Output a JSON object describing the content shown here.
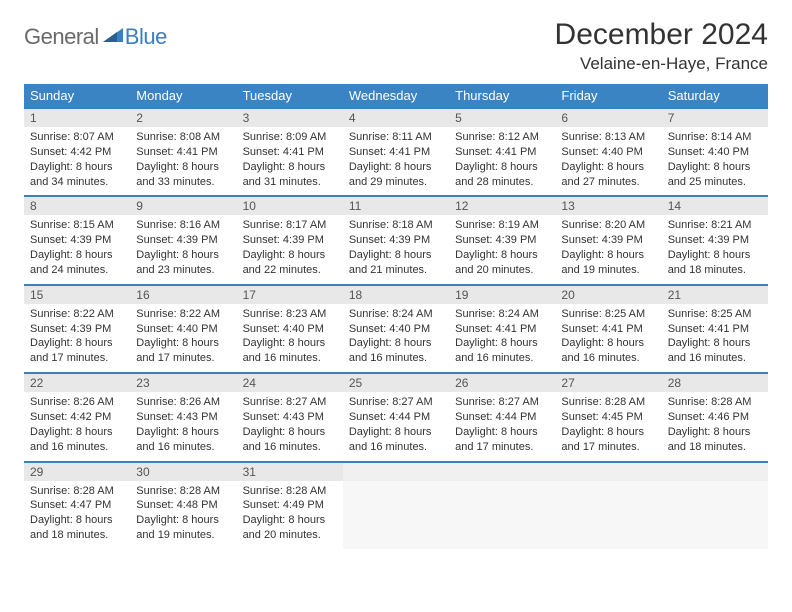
{
  "logo": {
    "general": "General",
    "blue": "Blue"
  },
  "title": "December 2024",
  "location": "Velaine-en-Haye, France",
  "colors": {
    "header_bg": "#3a84c4",
    "header_text": "#ffffff",
    "rule": "#3a7fbf",
    "daynum_bg": "#e8e8e8",
    "logo_gray": "#6a6a6a",
    "logo_blue": "#3a7fbf"
  },
  "weekdays": [
    "Sunday",
    "Monday",
    "Tuesday",
    "Wednesday",
    "Thursday",
    "Friday",
    "Saturday"
  ],
  "weeks": [
    [
      {
        "n": "1",
        "sunrise": "8:07 AM",
        "sunset": "4:42 PM",
        "daylight": "8 hours and 34 minutes."
      },
      {
        "n": "2",
        "sunrise": "8:08 AM",
        "sunset": "4:41 PM",
        "daylight": "8 hours and 33 minutes."
      },
      {
        "n": "3",
        "sunrise": "8:09 AM",
        "sunset": "4:41 PM",
        "daylight": "8 hours and 31 minutes."
      },
      {
        "n": "4",
        "sunrise": "8:11 AM",
        "sunset": "4:41 PM",
        "daylight": "8 hours and 29 minutes."
      },
      {
        "n": "5",
        "sunrise": "8:12 AM",
        "sunset": "4:41 PM",
        "daylight": "8 hours and 28 minutes."
      },
      {
        "n": "6",
        "sunrise": "8:13 AM",
        "sunset": "4:40 PM",
        "daylight": "8 hours and 27 minutes."
      },
      {
        "n": "7",
        "sunrise": "8:14 AM",
        "sunset": "4:40 PM",
        "daylight": "8 hours and 25 minutes."
      }
    ],
    [
      {
        "n": "8",
        "sunrise": "8:15 AM",
        "sunset": "4:39 PM",
        "daylight": "8 hours and 24 minutes."
      },
      {
        "n": "9",
        "sunrise": "8:16 AM",
        "sunset": "4:39 PM",
        "daylight": "8 hours and 23 minutes."
      },
      {
        "n": "10",
        "sunrise": "8:17 AM",
        "sunset": "4:39 PM",
        "daylight": "8 hours and 22 minutes."
      },
      {
        "n": "11",
        "sunrise": "8:18 AM",
        "sunset": "4:39 PM",
        "daylight": "8 hours and 21 minutes."
      },
      {
        "n": "12",
        "sunrise": "8:19 AM",
        "sunset": "4:39 PM",
        "daylight": "8 hours and 20 minutes."
      },
      {
        "n": "13",
        "sunrise": "8:20 AM",
        "sunset": "4:39 PM",
        "daylight": "8 hours and 19 minutes."
      },
      {
        "n": "14",
        "sunrise": "8:21 AM",
        "sunset": "4:39 PM",
        "daylight": "8 hours and 18 minutes."
      }
    ],
    [
      {
        "n": "15",
        "sunrise": "8:22 AM",
        "sunset": "4:39 PM",
        "daylight": "8 hours and 17 minutes."
      },
      {
        "n": "16",
        "sunrise": "8:22 AM",
        "sunset": "4:40 PM",
        "daylight": "8 hours and 17 minutes."
      },
      {
        "n": "17",
        "sunrise": "8:23 AM",
        "sunset": "4:40 PM",
        "daylight": "8 hours and 16 minutes."
      },
      {
        "n": "18",
        "sunrise": "8:24 AM",
        "sunset": "4:40 PM",
        "daylight": "8 hours and 16 minutes."
      },
      {
        "n": "19",
        "sunrise": "8:24 AM",
        "sunset": "4:41 PM",
        "daylight": "8 hours and 16 minutes."
      },
      {
        "n": "20",
        "sunrise": "8:25 AM",
        "sunset": "4:41 PM",
        "daylight": "8 hours and 16 minutes."
      },
      {
        "n": "21",
        "sunrise": "8:25 AM",
        "sunset": "4:41 PM",
        "daylight": "8 hours and 16 minutes."
      }
    ],
    [
      {
        "n": "22",
        "sunrise": "8:26 AM",
        "sunset": "4:42 PM",
        "daylight": "8 hours and 16 minutes."
      },
      {
        "n": "23",
        "sunrise": "8:26 AM",
        "sunset": "4:43 PM",
        "daylight": "8 hours and 16 minutes."
      },
      {
        "n": "24",
        "sunrise": "8:27 AM",
        "sunset": "4:43 PM",
        "daylight": "8 hours and 16 minutes."
      },
      {
        "n": "25",
        "sunrise": "8:27 AM",
        "sunset": "4:44 PM",
        "daylight": "8 hours and 16 minutes."
      },
      {
        "n": "26",
        "sunrise": "8:27 AM",
        "sunset": "4:44 PM",
        "daylight": "8 hours and 17 minutes."
      },
      {
        "n": "27",
        "sunrise": "8:28 AM",
        "sunset": "4:45 PM",
        "daylight": "8 hours and 17 minutes."
      },
      {
        "n": "28",
        "sunrise": "8:28 AM",
        "sunset": "4:46 PM",
        "daylight": "8 hours and 18 minutes."
      }
    ],
    [
      {
        "n": "29",
        "sunrise": "8:28 AM",
        "sunset": "4:47 PM",
        "daylight": "8 hours and 18 minutes."
      },
      {
        "n": "30",
        "sunrise": "8:28 AM",
        "sunset": "4:48 PM",
        "daylight": "8 hours and 19 minutes."
      },
      {
        "n": "31",
        "sunrise": "8:28 AM",
        "sunset": "4:49 PM",
        "daylight": "8 hours and 20 minutes."
      },
      null,
      null,
      null,
      null
    ]
  ],
  "labels": {
    "sunrise": "Sunrise:",
    "sunset": "Sunset:",
    "daylight": "Daylight:"
  }
}
